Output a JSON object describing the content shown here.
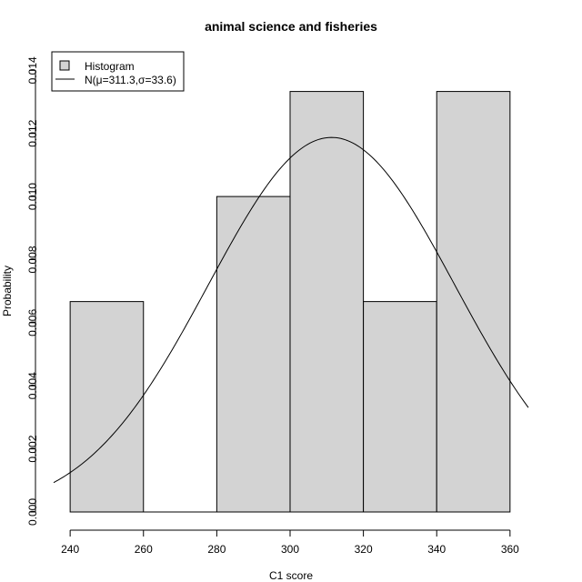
{
  "chart_data": {
    "type": "bar",
    "title": "animal science and fisheries",
    "xlabel": "C1 score",
    "ylabel": "Probability",
    "xlim": [
      235.5,
      365
    ],
    "ylim": [
      0,
      0.0145
    ],
    "grid": false,
    "legend_position": "top-left",
    "x_ticks": [
      240,
      260,
      280,
      300,
      320,
      340,
      360
    ],
    "x_tick_labels": [
      "240",
      "260",
      "280",
      "300",
      "320",
      "340",
      "360"
    ],
    "y_ticks": [
      0,
      0.002,
      0.004,
      0.006,
      0.008,
      0.01,
      0.012,
      0.014
    ],
    "y_tick_labels": [
      "0.000",
      "0.002",
      "0.004",
      "0.006",
      "0.008",
      "0.010",
      "0.012",
      "0.014"
    ],
    "bins": [
      {
        "start": 240,
        "end": 260,
        "density": 0.00667
      },
      {
        "start": 260,
        "end": 280,
        "density": 0
      },
      {
        "start": 280,
        "end": 300,
        "density": 0.01
      },
      {
        "start": 300,
        "end": 320,
        "density": 0.01333
      },
      {
        "start": 320,
        "end": 340,
        "density": 0.00667
      },
      {
        "start": 340,
        "end": 360,
        "density": 0.01333
      }
    ],
    "curve": {
      "mu": 311.3,
      "sigma": 33.6
    },
    "series": [
      {
        "name": "Histogram",
        "kind": "bar",
        "color": "#d3d3d3"
      },
      {
        "name": "N(μ=311.3,σ=33.6)",
        "kind": "line",
        "color": "#000000"
      }
    ],
    "bar_fill": "#d3d3d3",
    "line_color": "#000000"
  }
}
